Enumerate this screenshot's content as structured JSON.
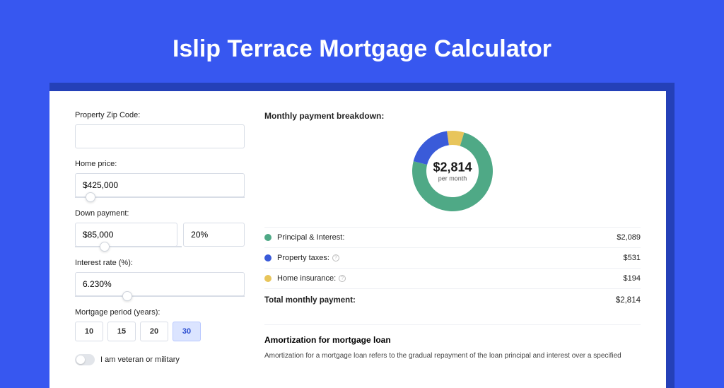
{
  "page": {
    "title": "Islip Terrace Mortgage Calculator",
    "background_color": "#3757f0",
    "card_shadow_color": "#2440b8"
  },
  "form": {
    "zip": {
      "label": "Property Zip Code:",
      "value": ""
    },
    "home_price": {
      "label": "Home price:",
      "value": "$425,000",
      "slider_percent": 9
    },
    "down_payment": {
      "label": "Down payment:",
      "amount": "$85,000",
      "percent": "20%",
      "slider_percent": 20
    },
    "interest_rate": {
      "label": "Interest rate (%):",
      "value": "6.230%",
      "slider_percent": 31
    },
    "mortgage_period": {
      "label": "Mortgage period (years):",
      "options": [
        "10",
        "15",
        "20",
        "30"
      ],
      "selected": "30"
    },
    "veteran": {
      "label": "I am veteran or military",
      "checked": false
    }
  },
  "breakdown": {
    "heading": "Monthly payment breakdown:",
    "donut": {
      "type": "donut",
      "center_amount": "$2,814",
      "center_sub": "per month",
      "size": 118,
      "thickness": 20,
      "segments": [
        {
          "name": "Principal & Interest",
          "value": 2089,
          "color": "#4fa986"
        },
        {
          "name": "Property taxes",
          "value": 531,
          "color": "#3a5bd9"
        },
        {
          "name": "Home insurance",
          "value": 194,
          "color": "#e8c55b"
        }
      ],
      "background_color": "#ffffff"
    },
    "rows": [
      {
        "label": "Principal & Interest:",
        "value": "$2,089",
        "dot_color": "#4fa986",
        "info": false
      },
      {
        "label": "Property taxes:",
        "value": "$531",
        "dot_color": "#3a5bd9",
        "info": true
      },
      {
        "label": "Home insurance:",
        "value": "$194",
        "dot_color": "#e8c55b",
        "info": true
      }
    ],
    "total": {
      "label": "Total monthly payment:",
      "value": "$2,814"
    }
  },
  "amortization": {
    "heading": "Amortization for mortgage loan",
    "text": "Amortization for a mortgage loan refers to the gradual repayment of the loan principal and interest over a specified"
  }
}
